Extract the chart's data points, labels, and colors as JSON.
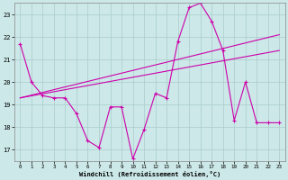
{
  "xlabel": "Windchill (Refroidissement éolien,°C)",
  "bg_color": "#cce8e8",
  "grid_color": "#aacccc",
  "line_color": "#cc00aa",
  "xlim": [
    -0.5,
    23.5
  ],
  "ylim": [
    16.5,
    23.5
  ],
  "xticks": [
    0,
    1,
    2,
    3,
    4,
    5,
    6,
    7,
    8,
    9,
    10,
    11,
    12,
    13,
    14,
    15,
    16,
    17,
    18,
    19,
    20,
    21,
    22,
    23
  ],
  "yticks": [
    17,
    18,
    19,
    20,
    21,
    22,
    23
  ],
  "line_data": {
    "x": [
      0,
      1,
      2,
      3,
      4,
      5,
      6,
      7,
      8,
      9,
      10,
      11,
      12,
      13,
      14,
      15,
      16,
      17,
      18,
      19,
      20,
      21,
      22,
      23
    ],
    "y": [
      21.7,
      20.0,
      19.4,
      19.3,
      19.3,
      18.6,
      17.4,
      17.1,
      18.9,
      18.9,
      16.6,
      17.9,
      19.5,
      19.3,
      21.8,
      23.3,
      23.5,
      22.7,
      21.4,
      18.3,
      20.0,
      18.2,
      18.2,
      18.2
    ]
  },
  "trend1": {
    "x": [
      0,
      23
    ],
    "y": [
      19.3,
      22.1
    ]
  },
  "trend2": {
    "x": [
      0,
      23
    ],
    "y": [
      19.3,
      21.4
    ]
  }
}
